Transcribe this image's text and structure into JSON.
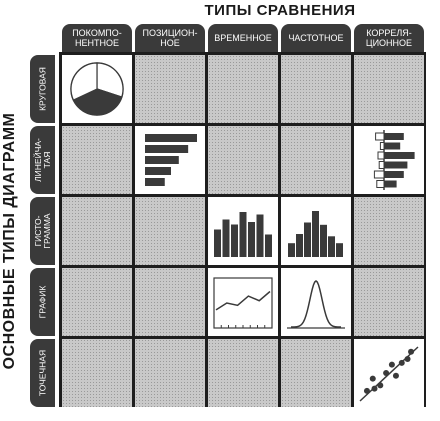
{
  "title_top": "ТИПЫ СРАВНЕНИЯ",
  "title_side": "ОСНОВНЫЕ ТИПЫ ДИАГРАММ",
  "columns": [
    {
      "label": "ПОКОМПО-\nНЕНТНОЕ"
    },
    {
      "label": "ПОЗИЦИОН-\nНОЕ"
    },
    {
      "label": "ВРЕМЕННОЕ"
    },
    {
      "label": "ЧАСТОТНОЕ"
    },
    {
      "label": "КОРРЕЛЯ-\nЦИОННОЕ"
    }
  ],
  "rows": [
    {
      "label": "КРУГОВАЯ"
    },
    {
      "label": "ЛИНЕЙЧА-\nТАЯ"
    },
    {
      "label": "ГИСТО-\nГРАММА"
    },
    {
      "label": "ГРАФИК"
    },
    {
      "label": "ТОЧЕЧНАЯ"
    }
  ],
  "colors": {
    "dark": "#3a3a3a",
    "cell": "#c9c9c9",
    "mark": "#3a3a3a",
    "grid": "#1e1e1e"
  },
  "charts": {
    "pie": [
      0.3,
      0.38,
      0.32
    ],
    "position_bars": [
      1.0,
      0.83,
      0.65,
      0.5,
      0.38
    ],
    "correlation_bars": [
      {
        "left": 0.35,
        "right": 0.55
      },
      {
        "left": 0.15,
        "right": 0.45
      },
      {
        "left": 0.25,
        "right": 0.85
      },
      {
        "left": 0.2,
        "right": 0.65
      },
      {
        "left": 0.4,
        "right": 0.55
      },
      {
        "left": 0.3,
        "right": 0.35
      }
    ],
    "time_histogram": [
      0.55,
      0.75,
      0.65,
      0.9,
      0.7,
      0.85,
      0.45
    ],
    "frequency_histogram": [
      0.3,
      0.5,
      0.75,
      1.0,
      0.7,
      0.45,
      0.3
    ],
    "time_line": [
      0.35,
      0.5,
      0.45,
      0.65,
      0.55,
      0.75
    ],
    "normal_curve_sigma": 0.12,
    "scatter": [
      [
        0.12,
        0.82
      ],
      [
        0.22,
        0.6
      ],
      [
        0.35,
        0.72
      ],
      [
        0.45,
        0.5
      ],
      [
        0.55,
        0.35
      ],
      [
        0.62,
        0.55
      ],
      [
        0.72,
        0.32
      ],
      [
        0.82,
        0.25
      ],
      [
        0.88,
        0.12
      ],
      [
        0.25,
        0.78
      ]
    ]
  }
}
